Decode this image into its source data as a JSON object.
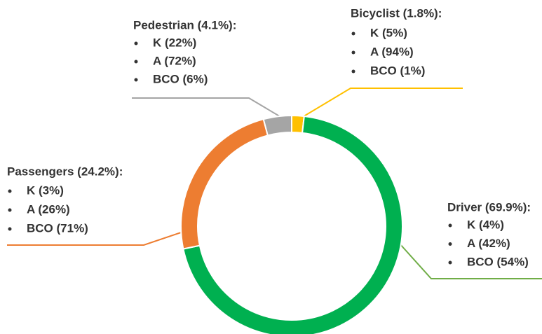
{
  "chart_data": {
    "type": "donut",
    "values": [
      1.8,
      69.9,
      24.2,
      4.1
    ],
    "value_labels": [
      "Bicyclist (1.8%):",
      "Driver (69.9%):",
      "Passengers (24.2%):",
      "Pedestrian (4.1%):"
    ],
    "colors": [
      "#ffc000",
      "#00b050",
      "#ed7d31",
      "#a5a5a5"
    ],
    "breakdown": [
      [
        "K (5%)",
        "A (94%)",
        "BCO (1%)"
      ],
      [
        "K (4%)",
        "A (42%)",
        "BCO (54%)"
      ],
      [
        "K (3%)",
        "A (26%)",
        "BCO (71%)"
      ],
      [
        "K (22%)",
        "A (72%)",
        "BCO (6%)"
      ]
    ]
  }
}
